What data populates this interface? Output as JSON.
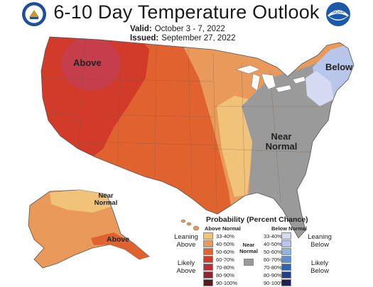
{
  "title": "6-10 Day Temperature Outlook",
  "valid": {
    "label": "Valid:",
    "value": "October 3 - 7, 2022"
  },
  "issued": {
    "label": "Issued:",
    "value": "September 27, 2022"
  },
  "logos": {
    "left": "doc-seal-icon",
    "right": "noaa-logo-icon",
    "right_text": "NOAA"
  },
  "map_labels": {
    "above_west": "Above",
    "below_ne": "Below",
    "near_normal_east": "Near Normal",
    "near_normal_alaska": "Near Normal",
    "above_alaska": "Above"
  },
  "legend": {
    "title": "Probability (Percent Chance)",
    "above_header": "Above Normal",
    "below_header": "Below Normal",
    "near_normal": "Near Normal",
    "leaning_above": "Leaning Above",
    "likely_above": "Likely Above",
    "leaning_below": "Leaning Below",
    "likely_below": "Likely Below",
    "above_bins": [
      {
        "label": "33-40%",
        "color": "#f0c27a"
      },
      {
        "label": "40-50%",
        "color": "#e9995a"
      },
      {
        "label": "50-60%",
        "color": "#e0622e"
      },
      {
        "label": "60-70%",
        "color": "#d23b2a"
      },
      {
        "label": "70-80%",
        "color": "#b82e36"
      },
      {
        "label": "80-90%",
        "color": "#8f2430"
      },
      {
        "label": "90-100%",
        "color": "#5a1b1f"
      }
    ],
    "below_bins": [
      {
        "label": "33-40%",
        "color": "#d3daf2"
      },
      {
        "label": "40-50%",
        "color": "#b7c6ea"
      },
      {
        "label": "50-60%",
        "color": "#8eb4e0"
      },
      {
        "label": "60-70%",
        "color": "#5b8fd1"
      },
      {
        "label": "70-80%",
        "color": "#2d63b5"
      },
      {
        "label": "80-90%",
        "color": "#1f3f8c"
      },
      {
        "label": "90-100%",
        "color": "#1b1f5e"
      }
    ],
    "near_normal_color": "#9a9a9a"
  }
}
